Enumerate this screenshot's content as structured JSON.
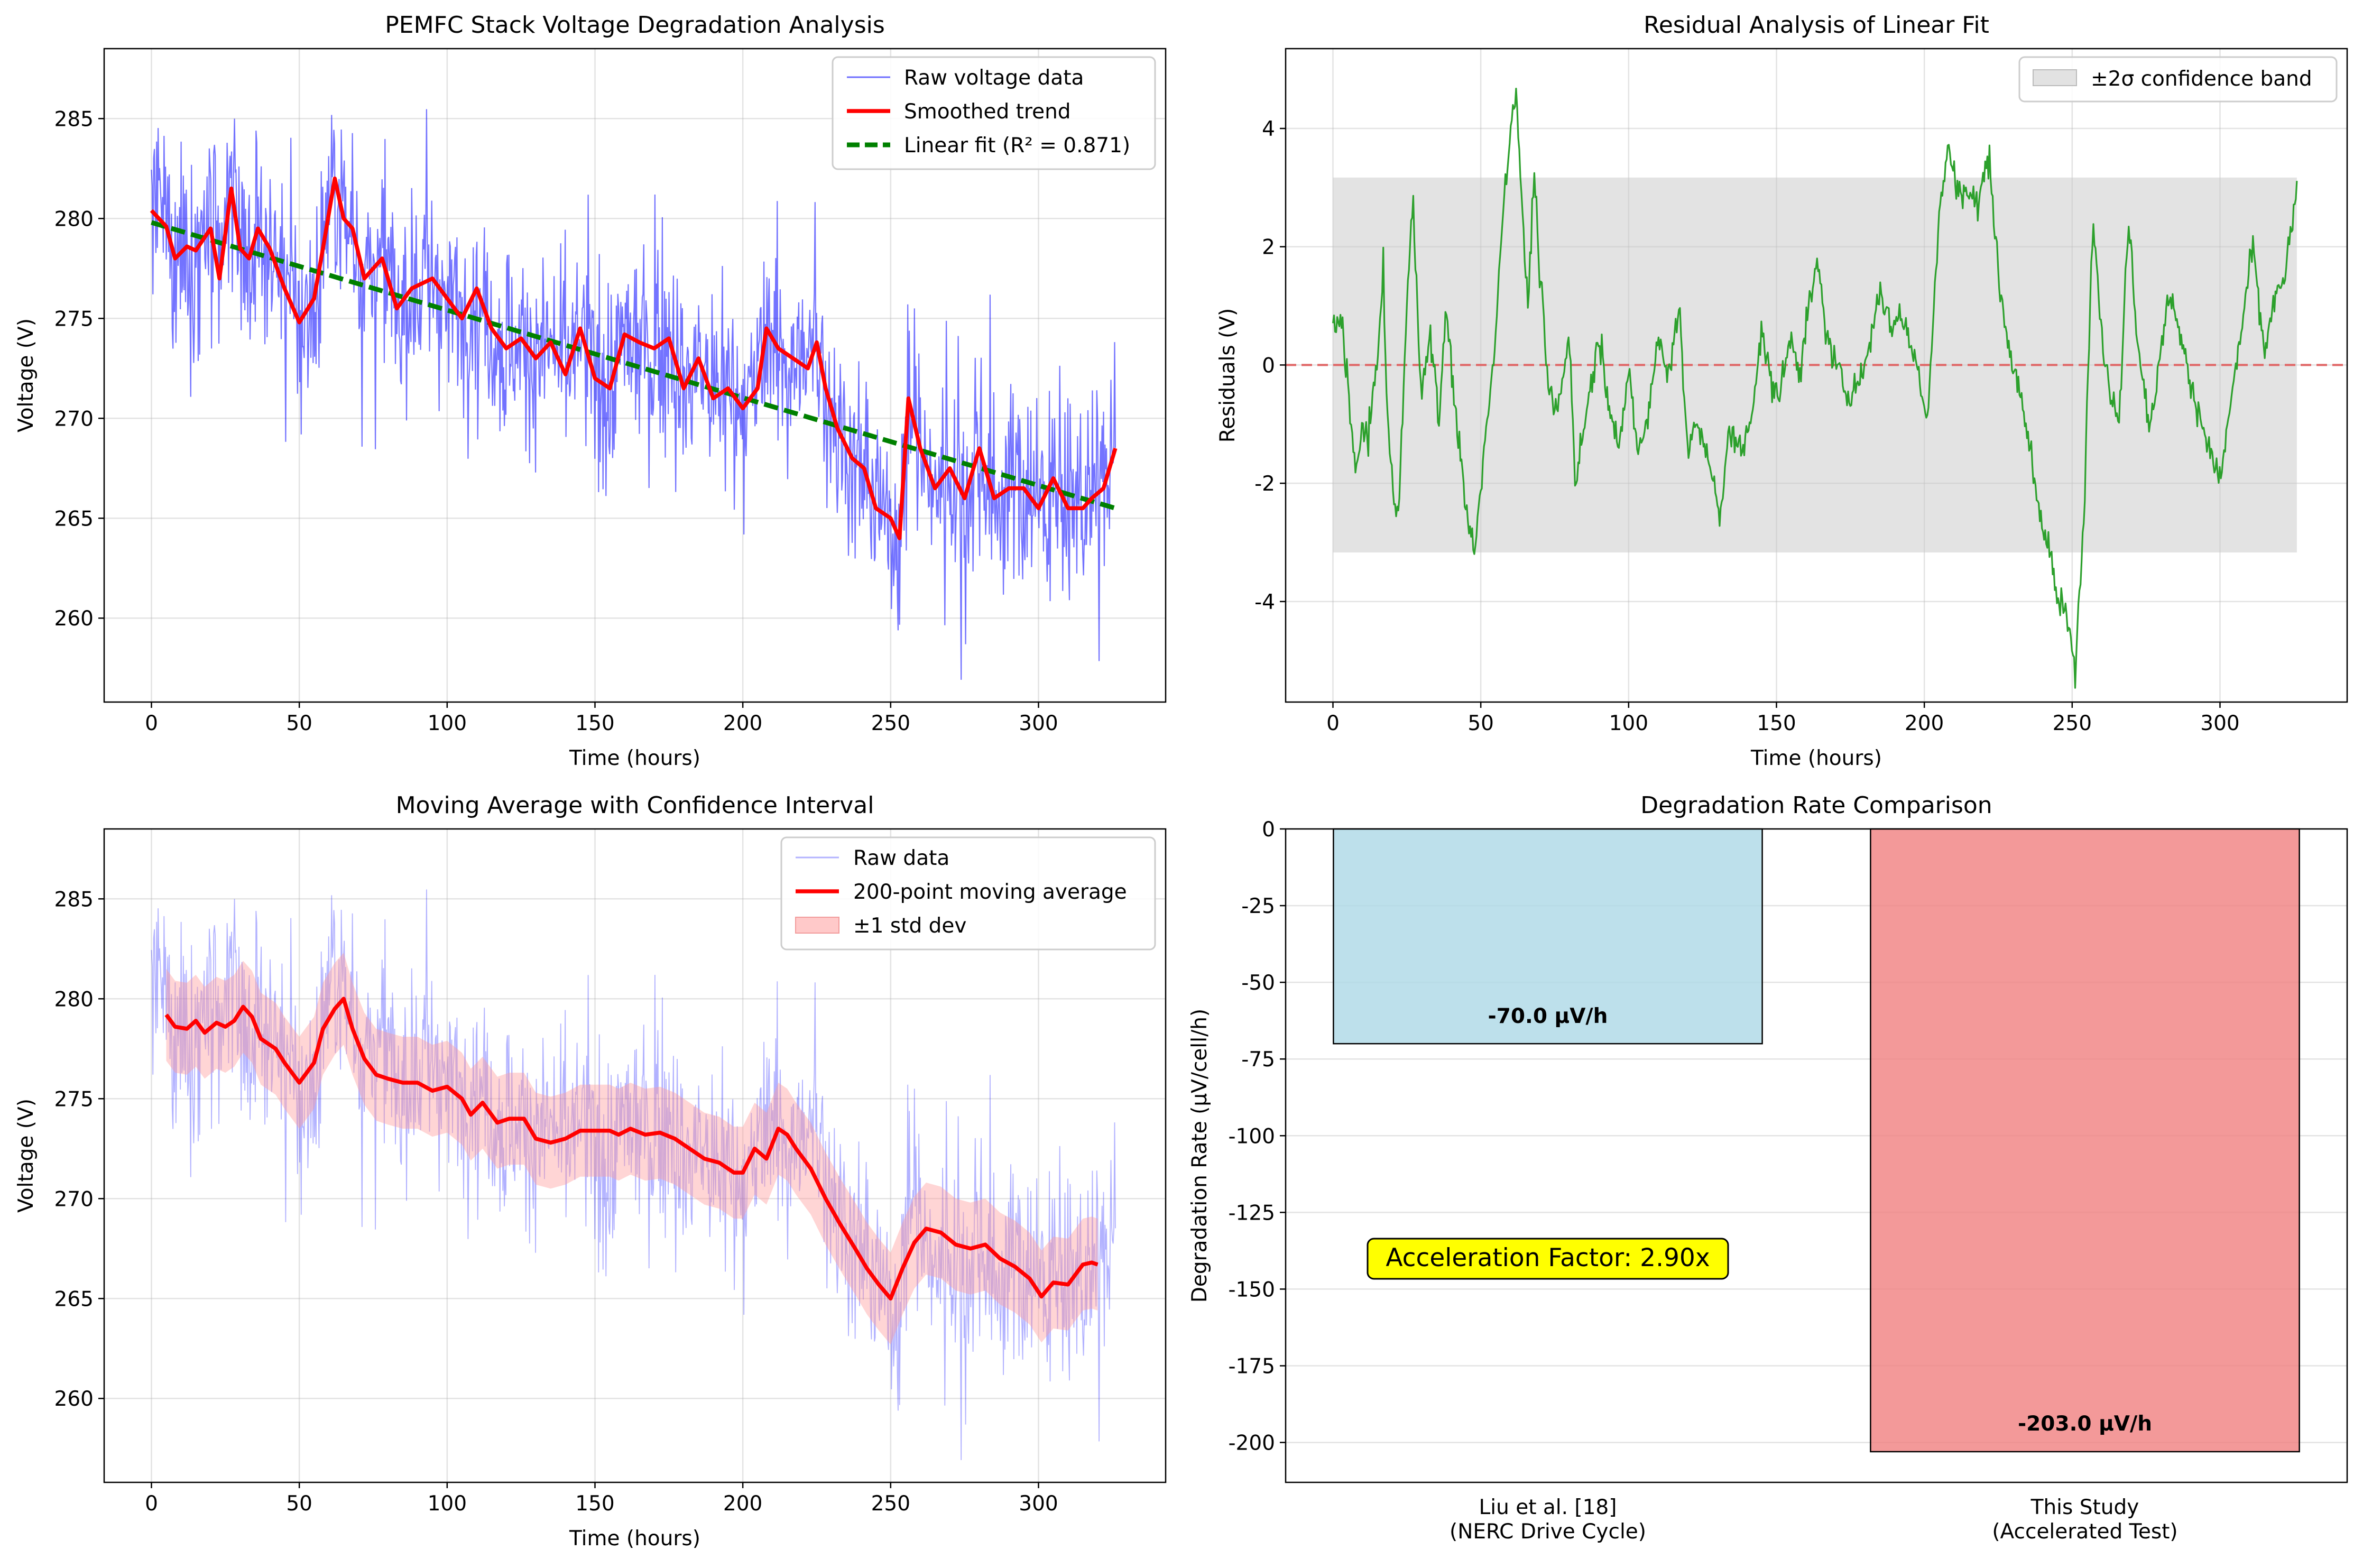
{
  "colors": {
    "raw": "#0000ff",
    "smooth": "#ff0000",
    "linear_fit": "#008000",
    "residual": "#2ca02c",
    "zero_line": "#e06666",
    "band": "#c8c8c8",
    "std_band": "#ff9a9a",
    "bar_liu": "#add8e6",
    "bar_study": "#f08080",
    "annotation_bg": "#ffff00"
  },
  "chart_data": [
    {
      "id": "voltage",
      "type": "line",
      "title": "PEMFC Stack Voltage Degradation Analysis",
      "xlabel": "Time (hours)",
      "ylabel": "Voltage (V)",
      "xlim": [
        -16,
        343
      ],
      "ylim": [
        255.8,
        288.5
      ],
      "xticks": [
        "0",
        "50",
        "100",
        "150",
        "200",
        "250",
        "300"
      ],
      "yticks": [
        "260",
        "265",
        "270",
        "275",
        "280",
        "285"
      ],
      "grid": true,
      "legend_position": "top-right",
      "legend": [
        "Raw voltage data",
        "Smoothed trend",
        "Linear fit (R² = 0.871)"
      ],
      "trend_points": [
        [
          0,
          280.4
        ],
        [
          5,
          279.6
        ],
        [
          8,
          278.0
        ],
        [
          12,
          278.6
        ],
        [
          15,
          278.4
        ],
        [
          20,
          279.5
        ],
        [
          23,
          277.0
        ],
        [
          27,
          281.5
        ],
        [
          30,
          278.5
        ],
        [
          33,
          278.0
        ],
        [
          36,
          279.5
        ],
        [
          40,
          278.5
        ],
        [
          45,
          276.5
        ],
        [
          50,
          274.8
        ],
        [
          55,
          276.0
        ],
        [
          58,
          278.5
        ],
        [
          62,
          282.0
        ],
        [
          65,
          280.0
        ],
        [
          68,
          279.5
        ],
        [
          72,
          277.0
        ],
        [
          78,
          278.0
        ],
        [
          83,
          275.5
        ],
        [
          88,
          276.5
        ],
        [
          95,
          277.0
        ],
        [
          100,
          276.0
        ],
        [
          105,
          275.0
        ],
        [
          110,
          276.5
        ],
        [
          115,
          274.5
        ],
        [
          120,
          273.5
        ],
        [
          125,
          274.0
        ],
        [
          130,
          273.0
        ],
        [
          135,
          273.8
        ],
        [
          140,
          272.2
        ],
        [
          145,
          274.5
        ],
        [
          150,
          272.0
        ],
        [
          155,
          271.5
        ],
        [
          160,
          274.2
        ],
        [
          165,
          273.8
        ],
        [
          170,
          273.5
        ],
        [
          175,
          274.0
        ],
        [
          180,
          271.5
        ],
        [
          185,
          273.0
        ],
        [
          190,
          271.0
        ],
        [
          195,
          271.5
        ],
        [
          200,
          270.5
        ],
        [
          205,
          271.5
        ],
        [
          208,
          274.5
        ],
        [
          212,
          273.5
        ],
        [
          217,
          273.0
        ],
        [
          222,
          272.5
        ],
        [
          225,
          273.8
        ],
        [
          228,
          271.5
        ],
        [
          232,
          269.5
        ],
        [
          237,
          268.0
        ],
        [
          241,
          267.5
        ],
        [
          245,
          265.5
        ],
        [
          250,
          265.0
        ],
        [
          253,
          264.0
        ],
        [
          256,
          271.0
        ],
        [
          260,
          268.5
        ],
        [
          265,
          266.5
        ],
        [
          270,
          267.5
        ],
        [
          275,
          266.0
        ],
        [
          280,
          268.5
        ],
        [
          285,
          266.0
        ],
        [
          290,
          266.5
        ],
        [
          295,
          266.5
        ],
        [
          300,
          265.5
        ],
        [
          305,
          267.0
        ],
        [
          310,
          265.5
        ],
        [
          315,
          265.5
        ],
        [
          318,
          266.0
        ],
        [
          322,
          266.5
        ],
        [
          326,
          268.5
        ]
      ],
      "linear_fit": [
        [
          0,
          279.8
        ],
        [
          326,
          265.5
        ]
      ],
      "raw_noise_sd": 2.4
    },
    {
      "id": "residual",
      "type": "line",
      "title": "Residual Analysis of Linear Fit",
      "xlabel": "Time (hours)",
      "ylabel": "Residuals (V)",
      "xlim": [
        -16,
        343
      ],
      "ylim": [
        -5.7,
        5.35
      ],
      "xticks": [
        "0",
        "50",
        "100",
        "150",
        "200",
        "250",
        "300"
      ],
      "yticks": [
        "-4",
        "-2",
        "0",
        "2",
        "4"
      ],
      "grid": true,
      "legend_position": "top-right",
      "legend": [
        "±2σ confidence band"
      ],
      "band": [
        -3.17,
        3.17
      ],
      "points": [
        [
          0,
          0.6
        ],
        [
          3,
          0.8
        ],
        [
          5,
          -0.3
        ],
        [
          7,
          -1.5
        ],
        [
          8,
          -1.9
        ],
        [
          10,
          -1.0
        ],
        [
          12,
          -1.2
        ],
        [
          15,
          0.0
        ],
        [
          17,
          1.8
        ],
        [
          18,
          -0.5
        ],
        [
          20,
          -2.0
        ],
        [
          22,
          -2.7
        ],
        [
          25,
          1.0
        ],
        [
          27,
          2.8
        ],
        [
          30,
          -0.5
        ],
        [
          33,
          0.5
        ],
        [
          36,
          -1.0
        ],
        [
          38,
          1.0
        ],
        [
          40,
          0.0
        ],
        [
          43,
          -1.5
        ],
        [
          45,
          -2.5
        ],
        [
          48,
          -3.2
        ],
        [
          50,
          -2.0
        ],
        [
          52,
          -1.0
        ],
        [
          55,
          0.5
        ],
        [
          58,
          3.0
        ],
        [
          62,
          4.8
        ],
        [
          64,
          2.5
        ],
        [
          66,
          1.0
        ],
        [
          68,
          3.3
        ],
        [
          70,
          1.5
        ],
        [
          73,
          -0.5
        ],
        [
          76,
          -0.8
        ],
        [
          80,
          0.5
        ],
        [
          82,
          -2.0
        ],
        [
          85,
          -1.0
        ],
        [
          90,
          0.5
        ],
        [
          93,
          -0.5
        ],
        [
          97,
          -1.5
        ],
        [
          100,
          0.0
        ],
        [
          103,
          -1.5
        ],
        [
          106,
          -1.0
        ],
        [
          110,
          0.5
        ],
        [
          113,
          -0.2
        ],
        [
          117,
          1.0
        ],
        [
          120,
          -1.5
        ],
        [
          123,
          -1.0
        ],
        [
          127,
          -1.5
        ],
        [
          131,
          -2.7
        ],
        [
          134,
          -1.0
        ],
        [
          138,
          -1.5
        ],
        [
          141,
          -1.0
        ],
        [
          145,
          0.6
        ],
        [
          148,
          -0.3
        ],
        [
          151,
          -0.5
        ],
        [
          155,
          0.5
        ],
        [
          158,
          -0.1
        ],
        [
          161,
          1.0
        ],
        [
          164,
          1.7
        ],
        [
          167,
          0.5
        ],
        [
          170,
          0.0
        ],
        [
          174,
          -0.5
        ],
        [
          179,
          -0.2
        ],
        [
          182,
          0.5
        ],
        [
          185,
          1.3
        ],
        [
          189,
          0.6
        ],
        [
          192,
          0.9
        ],
        [
          195,
          0.4
        ],
        [
          198,
          -0.1
        ],
        [
          201,
          -0.9
        ],
        [
          205,
          2.5
        ],
        [
          208,
          3.7
        ],
        [
          211,
          3.0
        ],
        [
          215,
          2.9
        ],
        [
          218,
          2.7
        ],
        [
          222,
          3.6
        ],
        [
          225,
          1.5
        ],
        [
          228,
          0.5
        ],
        [
          232,
          -0.5
        ],
        [
          235,
          -1.2
        ],
        [
          239,
          -2.5
        ],
        [
          242,
          -3.0
        ],
        [
          245,
          -4.0
        ],
        [
          248,
          -4.2
        ],
        [
          251,
          -5.2
        ],
        [
          254,
          -2.5
        ],
        [
          257,
          2.7
        ],
        [
          260,
          0.5
        ],
        [
          263,
          -0.5
        ],
        [
          266,
          -1.0
        ],
        [
          269,
          2.6
        ],
        [
          272,
          0.5
        ],
        [
          276,
          -1.0
        ],
        [
          279,
          -0.2
        ],
        [
          283,
          1.3
        ],
        [
          286,
          0.6
        ],
        [
          290,
          -0.3
        ],
        [
          293,
          -0.8
        ],
        [
          297,
          -1.5
        ],
        [
          300,
          -2.0
        ],
        [
          304,
          -0.5
        ],
        [
          307,
          0.5
        ],
        [
          311,
          2.0
        ],
        [
          315,
          0.2
        ],
        [
          318,
          1.0
        ],
        [
          322,
          1.5
        ],
        [
          326,
          3.0
        ]
      ]
    },
    {
      "id": "moving-average",
      "type": "line",
      "title": "Moving Average with Confidence Interval",
      "xlabel": "Time (hours)",
      "ylabel": "Voltage (V)",
      "xlim": [
        -16,
        343
      ],
      "ylim": [
        255.8,
        288.5
      ],
      "xticks": [
        "0",
        "50",
        "100",
        "150",
        "200",
        "250",
        "300"
      ],
      "yticks": [
        "260",
        "265",
        "270",
        "275",
        "280",
        "285"
      ],
      "grid": true,
      "legend_position": "top-right",
      "legend": [
        "Raw data",
        "200-point moving average",
        "±1 std dev"
      ],
      "std_dev": 2.3,
      "ma_points": [
        [
          5,
          279.2
        ],
        [
          8,
          278.6
        ],
        [
          12,
          278.5
        ],
        [
          15,
          278.9
        ],
        [
          18,
          278.3
        ],
        [
          22,
          278.8
        ],
        [
          25,
          278.6
        ],
        [
          28,
          278.9
        ],
        [
          31,
          279.6
        ],
        [
          34,
          279.1
        ],
        [
          37,
          278.0
        ],
        [
          42,
          277.5
        ],
        [
          45,
          276.8
        ],
        [
          48,
          276.2
        ],
        [
          50,
          275.8
        ],
        [
          55,
          276.8
        ],
        [
          58,
          278.5
        ],
        [
          62,
          279.5
        ],
        [
          65,
          280.0
        ],
        [
          68,
          278.5
        ],
        [
          72,
          277.0
        ],
        [
          76,
          276.2
        ],
        [
          80,
          276.0
        ],
        [
          85,
          275.8
        ],
        [
          90,
          275.8
        ],
        [
          95,
          275.4
        ],
        [
          100,
          275.6
        ],
        [
          105,
          275.0
        ],
        [
          108,
          274.2
        ],
        [
          112,
          274.8
        ],
        [
          117,
          273.8
        ],
        [
          121,
          274.0
        ],
        [
          126,
          274.0
        ],
        [
          130,
          273.0
        ],
        [
          135,
          272.8
        ],
        [
          140,
          273.0
        ],
        [
          145,
          273.4
        ],
        [
          150,
          273.4
        ],
        [
          155,
          273.4
        ],
        [
          158,
          273.2
        ],
        [
          162,
          273.5
        ],
        [
          167,
          273.2
        ],
        [
          172,
          273.3
        ],
        [
          177,
          273.0
        ],
        [
          182,
          272.5
        ],
        [
          187,
          272.0
        ],
        [
          192,
          271.8
        ],
        [
          197,
          271.3
        ],
        [
          200,
          271.3
        ],
        [
          204,
          272.5
        ],
        [
          208,
          272.0
        ],
        [
          212,
          273.5
        ],
        [
          215,
          273.2
        ],
        [
          218,
          272.5
        ],
        [
          223,
          271.5
        ],
        [
          228,
          270.0
        ],
        [
          233,
          268.7
        ],
        [
          238,
          267.5
        ],
        [
          242,
          266.5
        ],
        [
          246,
          265.7
        ],
        [
          250,
          265.0
        ],
        [
          254,
          266.5
        ],
        [
          258,
          267.8
        ],
        [
          262,
          268.5
        ],
        [
          267,
          268.3
        ],
        [
          272,
          267.7
        ],
        [
          277,
          267.5
        ],
        [
          282,
          267.7
        ],
        [
          287,
          267.0
        ],
        [
          292,
          266.6
        ],
        [
          297,
          266.0
        ],
        [
          301,
          265.1
        ],
        [
          305,
          265.8
        ],
        [
          310,
          265.7
        ],
        [
          315,
          266.7
        ],
        [
          318,
          266.8
        ],
        [
          320,
          266.7
        ]
      ]
    },
    {
      "id": "degradation-rate",
      "type": "bar",
      "title": "Degradation Rate Comparison",
      "ylabel": "Degradation Rate (μV/cell/h)",
      "ylim": [
        -213,
        0
      ],
      "yticks": [
        "0",
        "-25",
        "-50",
        "-75",
        "-100",
        "-125",
        "-150",
        "-175",
        "-200"
      ],
      "grid": true,
      "categories": [
        {
          "line1": "Liu et al. [18]",
          "line2": "(NERC Drive Cycle)"
        },
        {
          "line1": "This Study",
          "line2": "(Accelerated Test)"
        }
      ],
      "values": [
        -70.0,
        -203.0
      ],
      "value_labels": [
        "-70.0 μV/h",
        "-203.0 μV/h"
      ],
      "annotation": "Acceleration Factor: 2.90x"
    }
  ]
}
